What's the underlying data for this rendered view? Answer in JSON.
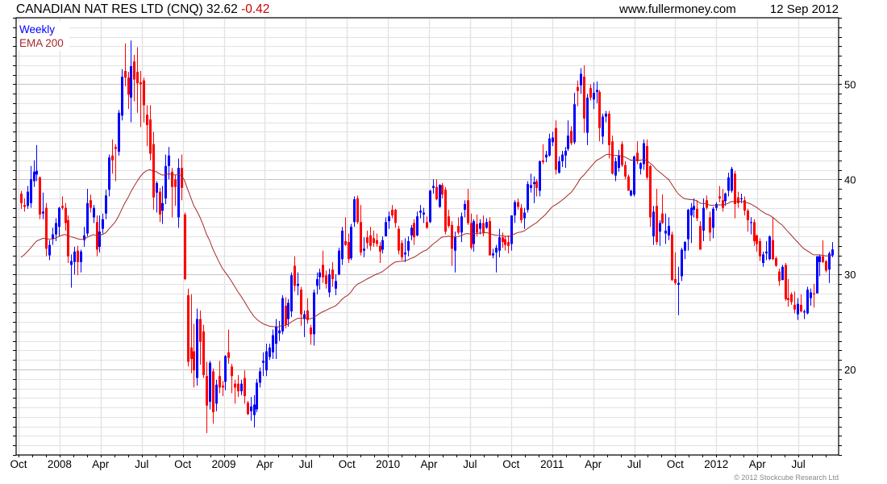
{
  "header": {
    "title": "CANADIAN NAT RES LTD (CNQ) 32.62",
    "change": "-0.42",
    "site": "www.fullermoney.com",
    "date": "12 Sep 2012"
  },
  "legend": {
    "series": "Weekly",
    "ema": "EMA 200"
  },
  "footer": {
    "copyright": "© 2012 Stockcube Research Ltd"
  },
  "colors": {
    "up": "#0000ff",
    "down": "#ff0000",
    "ema": "#a52a2a",
    "change": "#cc0000",
    "grid": "#e2e2e2",
    "grid_major": "#c4c4c4"
  },
  "chart_data": {
    "type": "candlestick",
    "title": "CANADIAN NAT RES LTD (CNQ)",
    "interval": "Weekly",
    "ylim": [
      11,
      57
    ],
    "yticks": [
      20,
      30,
      40,
      50
    ],
    "xticks": [
      "Oct",
      "2008",
      "Apr",
      "Jul",
      "Oct",
      "2009",
      "Apr",
      "Jul",
      "Oct",
      "2010",
      "Apr",
      "Jul",
      "Oct",
      "2011",
      "Apr",
      "Jul",
      "Oct",
      "2012",
      "Apr",
      "Jul"
    ],
    "grid": true,
    "ema": {
      "label": "EMA 200",
      "period_weeks": 40,
      "seed": 31.5
    },
    "candles_format": [
      "open",
      "high",
      "low",
      "close"
    ],
    "candles": [
      [
        38.5,
        38.8,
        36.9,
        37.5
      ],
      [
        37.3,
        38.0,
        36.6,
        37.1
      ],
      [
        37.2,
        39.3,
        36.9,
        38.7
      ],
      [
        37.5,
        41.4,
        37.0,
        40.0
      ],
      [
        39.8,
        42.0,
        39.2,
        40.8
      ],
      [
        40.5,
        43.6,
        39.8,
        40.9
      ],
      [
        40.2,
        40.3,
        35.8,
        36.3
      ],
      [
        36.4,
        38.6,
        35.8,
        36.6
      ],
      [
        37.0,
        37.5,
        31.9,
        32.7
      ],
      [
        32.0,
        33.6,
        31.5,
        33.1
      ],
      [
        33.7,
        34.9,
        33.1,
        34.2
      ],
      [
        34.2,
        35.9,
        33.5,
        35.4
      ],
      [
        35.0,
        37.1,
        34.0,
        37.0
      ],
      [
        37.2,
        38.2,
        36.8,
        37.0
      ],
      [
        37.0,
        37.5,
        34.6,
        35.4
      ],
      [
        35.7,
        36.2,
        31.2,
        31.9
      ],
      [
        31.0,
        32.1,
        28.6,
        31.4
      ],
      [
        31.3,
        32.9,
        30.0,
        32.4
      ],
      [
        32.5,
        33.0,
        29.9,
        31.3
      ],
      [
        31.3,
        32.6,
        30.2,
        32.4
      ],
      [
        33.6,
        35.0,
        32.9,
        34.1
      ],
      [
        34.3,
        39.0,
        34.0,
        37.5
      ],
      [
        37.8,
        38.4,
        36.5,
        37.0
      ],
      [
        36.0,
        37.3,
        35.4,
        37.0
      ],
      [
        35.5,
        36.2,
        31.9,
        32.6
      ],
      [
        32.9,
        36.2,
        32.3,
        34.5
      ],
      [
        34.8,
        36.4,
        34.3,
        35.8
      ],
      [
        36.4,
        38.9,
        35.8,
        38.3
      ],
      [
        38.9,
        42.6,
        38.2,
        42.3
      ],
      [
        42.5,
        44.2,
        40.6,
        42.0
      ],
      [
        43.4,
        43.7,
        39.8,
        43.2
      ],
      [
        42.9,
        47.3,
        42.5,
        47.0
      ],
      [
        46.7,
        51.6,
        46.2,
        50.8
      ],
      [
        51.4,
        54.3,
        49.8,
        50.7
      ],
      [
        50.7,
        51.3,
        47.4,
        48.9
      ],
      [
        48.6,
        54.6,
        46.0,
        51.9
      ],
      [
        52.4,
        53.1,
        48.2,
        50.5
      ],
      [
        51.3,
        53.9,
        47.0,
        50.1
      ],
      [
        50.2,
        51.4,
        45.5,
        50.0
      ],
      [
        50.4,
        50.7,
        46.0,
        47.8
      ],
      [
        46.8,
        47.8,
        43.5,
        45.7
      ],
      [
        46.3,
        47.8,
        42.0,
        42.7
      ],
      [
        43.7,
        45.0,
        36.8,
        38.1
      ],
      [
        38.6,
        39.8,
        36.5,
        39.6
      ],
      [
        38.7,
        39.1,
        35.5,
        36.3
      ],
      [
        36.7,
        39.3,
        35.3,
        37.5
      ],
      [
        38.0,
        42.6,
        37.4,
        41.4
      ],
      [
        41.4,
        43.4,
        40.0,
        42.5
      ],
      [
        40.8,
        41.2,
        36.0,
        39.2
      ],
      [
        40.0,
        40.5,
        37.2,
        39.2
      ],
      [
        36.0,
        42.2,
        34.9,
        41.2
      ],
      [
        41.2,
        42.6,
        37.8,
        39.1
      ],
      [
        36.3,
        36.5,
        29.4,
        29.5
      ],
      [
        27.8,
        28.5,
        20.3,
        20.8
      ],
      [
        22.3,
        27.9,
        19.6,
        21.1
      ],
      [
        21.9,
        24.8,
        18.1,
        19.9
      ],
      [
        19.1,
        26.4,
        18.3,
        25.3
      ],
      [
        25.3,
        26.2,
        20.5,
        22.9
      ],
      [
        24.0,
        24.7,
        19.1,
        19.4
      ],
      [
        19.3,
        20.8,
        13.3,
        16.2
      ],
      [
        16.6,
        20.9,
        15.8,
        20.7
      ],
      [
        19.8,
        20.1,
        14.3,
        15.5
      ],
      [
        16.4,
        18.9,
        15.6,
        18.4
      ],
      [
        19.3,
        20.9,
        17.5,
        18.1
      ],
      [
        18.3,
        18.8,
        17.2,
        18.1
      ],
      [
        18.7,
        21.5,
        17.8,
        21.4
      ],
      [
        21.8,
        24.2,
        20.6,
        21.2
      ],
      [
        20.3,
        20.6,
        17.5,
        19.3
      ],
      [
        18.5,
        18.9,
        16.4,
        18.1
      ],
      [
        18.5,
        19.4,
        17.1,
        17.7
      ],
      [
        17.7,
        18.9,
        17.3,
        18.5
      ],
      [
        19.1,
        19.9,
        16.4,
        17.2
      ],
      [
        16.5,
        16.7,
        15.2,
        15.3
      ],
      [
        15.6,
        17.1,
        14.6,
        16.1
      ],
      [
        15.2,
        17.3,
        13.9,
        16.3
      ],
      [
        15.8,
        19.0,
        15.5,
        18.6
      ],
      [
        18.6,
        20.2,
        18.1,
        19.8
      ],
      [
        20.7,
        21.8,
        19.3,
        20.9
      ],
      [
        19.9,
        22.7,
        19.3,
        21.9
      ],
      [
        21.3,
        22.7,
        21.0,
        22.3
      ],
      [
        21.8,
        24.2,
        21.1,
        23.6
      ],
      [
        22.7,
        25.3,
        21.1,
        24.5
      ],
      [
        23.8,
        25.1,
        23.0,
        24.1
      ],
      [
        24.0,
        27.8,
        23.7,
        27.5
      ],
      [
        26.7,
        27.6,
        24.3,
        24.7
      ],
      [
        25.3,
        27.4,
        24.5,
        27.0
      ],
      [
        26.1,
        30.2,
        25.5,
        29.9
      ],
      [
        30.9,
        31.9,
        28.2,
        28.8
      ],
      [
        28.8,
        30.2,
        27.8,
        29.0
      ],
      [
        28.4,
        28.7,
        24.6,
        25.8
      ],
      [
        25.3,
        26.2,
        23.4,
        25.8
      ],
      [
        26.2,
        27.5,
        24.8,
        25.2
      ],
      [
        24.4,
        24.7,
        22.6,
        23.7
      ],
      [
        23.7,
        28.4,
        22.5,
        28.1
      ],
      [
        28.8,
        30.2,
        27.9,
        29.5
      ],
      [
        29.7,
        30.6,
        28.4,
        30.2
      ],
      [
        31.0,
        32.5,
        29.1,
        29.7
      ],
      [
        29.9,
        30.4,
        28.5,
        29.0
      ],
      [
        28.1,
        30.6,
        27.6,
        30.0
      ],
      [
        30.5,
        31.3,
        28.7,
        29.5
      ],
      [
        28.5,
        30.0,
        27.8,
        29.3
      ],
      [
        30.0,
        32.8,
        29.9,
        32.5
      ],
      [
        31.6,
        35.0,
        31.0,
        34.6
      ],
      [
        33.5,
        36.0,
        33.0,
        33.1
      ],
      [
        33.4,
        34.3,
        31.2,
        31.6
      ],
      [
        31.7,
        35.3,
        31.5,
        35.0
      ],
      [
        35.5,
        38.2,
        35.0,
        37.9
      ],
      [
        38.0,
        38.3,
        35.3,
        35.5
      ],
      [
        35.5,
        37.3,
        32.0,
        32.3
      ],
      [
        32.5,
        33.9,
        31.8,
        32.7
      ],
      [
        33.9,
        34.6,
        32.7,
        33.3
      ],
      [
        34.1,
        35.0,
        32.5,
        33.0
      ],
      [
        33.8,
        34.6,
        32.9,
        33.3
      ],
      [
        33.6,
        34.3,
        32.9,
        33.2
      ],
      [
        33.0,
        33.4,
        31.2,
        32.4
      ],
      [
        32.6,
        34.0,
        32.2,
        33.6
      ],
      [
        34.0,
        36.0,
        34.0,
        35.5
      ],
      [
        35.6,
        36.6,
        34.8,
        36.1
      ],
      [
        36.8,
        37.3,
        35.9,
        36.2
      ],
      [
        36.8,
        36.9,
        34.9,
        35.4
      ],
      [
        34.8,
        35.1,
        32.1,
        32.5
      ],
      [
        33.3,
        33.6,
        31.5,
        31.8
      ],
      [
        32.1,
        33.8,
        31.3,
        32.3
      ],
      [
        32.5,
        34.0,
        31.9,
        33.5
      ],
      [
        34.1,
        35.2,
        33.6,
        34.9
      ],
      [
        35.4,
        35.8,
        33.1,
        33.9
      ],
      [
        34.1,
        36.6,
        34.0,
        36.1
      ],
      [
        36.5,
        37.3,
        35.9,
        36.7
      ],
      [
        36.3,
        37.0,
        35.4,
        36.5
      ],
      [
        35.5,
        36.1,
        34.8,
        34.9
      ],
      [
        35.5,
        38.9,
        35.4,
        38.8
      ],
      [
        39.1,
        40.0,
        38.5,
        39.3
      ],
      [
        39.2,
        40.0,
        37.8,
        37.9
      ],
      [
        37.1,
        39.5,
        37.0,
        39.4
      ],
      [
        39.4,
        39.6,
        38.0,
        38.4
      ],
      [
        38.9,
        39.2,
        34.2,
        34.5
      ],
      [
        36.1,
        36.8,
        34.9,
        35.1
      ],
      [
        35.2,
        35.6,
        30.9,
        32.7
      ],
      [
        32.5,
        34.5,
        30.2,
        33.9
      ],
      [
        35.1,
        36.0,
        34.2,
        34.4
      ],
      [
        34.4,
        36.5,
        33.4,
        36.1
      ],
      [
        36.8,
        37.8,
        36.0,
        37.4
      ],
      [
        37.8,
        39.0,
        35.2,
        35.4
      ],
      [
        35.4,
        36.4,
        32.6,
        32.8
      ],
      [
        33.2,
        35.8,
        32.4,
        35.6
      ],
      [
        35.3,
        36.3,
        34.0,
        34.4
      ],
      [
        34.8,
        35.8,
        34.2,
        35.4
      ],
      [
        35.4,
        36.2,
        34.0,
        34.4
      ],
      [
        34.9,
        35.9,
        34.8,
        35.5
      ],
      [
        35.6,
        36.0,
        32.0,
        32.0
      ],
      [
        32.0,
        32.7,
        31.7,
        32.2
      ],
      [
        32.3,
        33.1,
        30.2,
        32.8
      ],
      [
        32.5,
        34.8,
        31.8,
        33.9
      ],
      [
        33.9,
        34.4,
        32.8,
        33.4
      ],
      [
        33.7,
        34.0,
        32.5,
        33.1
      ],
      [
        33.4,
        34.1,
        32.2,
        33.0
      ],
      [
        33.2,
        36.2,
        32.5,
        36.2
      ],
      [
        36.2,
        37.8,
        35.4,
        37.6
      ],
      [
        37.6,
        38.0,
        36.8,
        37.1
      ],
      [
        37.0,
        37.4,
        35.4,
        35.7
      ],
      [
        35.9,
        37.0,
        34.8,
        36.5
      ],
      [
        36.8,
        39.8,
        36.5,
        39.5
      ],
      [
        39.1,
        40.6,
        38.6,
        39.4
      ],
      [
        39.5,
        40.3,
        37.5,
        39.7
      ],
      [
        39.8,
        40.0,
        38.2,
        39.1
      ],
      [
        38.8,
        42.0,
        38.2,
        41.9
      ],
      [
        42.0,
        43.7,
        41.6,
        41.8
      ],
      [
        42.3,
        43.0,
        41.8,
        42.6
      ],
      [
        42.5,
        44.8,
        42.4,
        44.3
      ],
      [
        43.9,
        45.0,
        43.5,
        44.4
      ],
      [
        45.4,
        46.2,
        40.5,
        41.0
      ],
      [
        40.7,
        42.4,
        40.6,
        41.9
      ],
      [
        41.9,
        43.0,
        41.3,
        42.6
      ],
      [
        42.5,
        43.4,
        41.2,
        43.0
      ],
      [
        43.2,
        46.2,
        43.0,
        44.6
      ],
      [
        45.1,
        45.6,
        43.6,
        43.8
      ],
      [
        43.9,
        49.1,
        43.7,
        47.9
      ],
      [
        49.7,
        50.4,
        47.7,
        49.3
      ],
      [
        49.9,
        51.7,
        49.0,
        51.1
      ],
      [
        50.8,
        52.0,
        44.9,
        46.4
      ],
      [
        44.9,
        49.0,
        43.6,
        48.6
      ],
      [
        49.6,
        50.0,
        48.3,
        48.6
      ],
      [
        48.4,
        50.2,
        47.4,
        49.1
      ],
      [
        49.2,
        50.3,
        48.0,
        49.4
      ],
      [
        49.2,
        49.4,
        44.0,
        45.4
      ],
      [
        44.5,
        46.9,
        43.7,
        46.6
      ],
      [
        46.6,
        47.2,
        46.0,
        46.9
      ],
      [
        46.9,
        47.2,
        42.2,
        43.6
      ],
      [
        44.0,
        44.6,
        40.5,
        40.6
      ],
      [
        40.4,
        42.3,
        39.8,
        41.9
      ],
      [
        41.2,
        43.1,
        40.8,
        42.5
      ],
      [
        43.7,
        44.0,
        41.3,
        41.5
      ],
      [
        41.5,
        41.9,
        40.0,
        40.3
      ],
      [
        40.3,
        40.5,
        38.8,
        38.8
      ],
      [
        38.3,
        38.9,
        38.2,
        38.8
      ],
      [
        38.4,
        42.5,
        38.2,
        42.4
      ],
      [
        42.8,
        44.0,
        41.6,
        41.9
      ],
      [
        41.1,
        41.8,
        40.5,
        41.7
      ],
      [
        41.6,
        44.2,
        41.0,
        43.8
      ],
      [
        43.5,
        44.2,
        40.0,
        40.2
      ],
      [
        41.4,
        41.5,
        35.0,
        36.0
      ],
      [
        34.0,
        37.2,
        33.1,
        36.6
      ],
      [
        37.2,
        39.0,
        33.1,
        33.4
      ],
      [
        34.5,
        35.7,
        33.0,
        35.4
      ],
      [
        36.4,
        38.4,
        35.3,
        35.4
      ],
      [
        34.3,
        36.4,
        33.2,
        34.6
      ],
      [
        34.1,
        36.0,
        33.6,
        35.1
      ],
      [
        34.2,
        34.5,
        29.3,
        29.4
      ],
      [
        29.5,
        32.3,
        28.9,
        29.1
      ],
      [
        28.9,
        30.8,
        25.7,
        29.1
      ],
      [
        29.8,
        32.8,
        29.3,
        32.6
      ],
      [
        32.5,
        33.5,
        31.6,
        33.4
      ],
      [
        33.7,
        36.9,
        32.5,
        36.8
      ],
      [
        36.2,
        37.5,
        33.3,
        37.0
      ],
      [
        36.8,
        38.0,
        36.0,
        37.2
      ],
      [
        36.9,
        37.8,
        35.6,
        35.9
      ],
      [
        35.1,
        35.6,
        32.6,
        32.6
      ],
      [
        34.6,
        38.0,
        33.5,
        37.0
      ],
      [
        37.8,
        38.3,
        36.8,
        37.0
      ],
      [
        36.0,
        36.6,
        33.5,
        34.4
      ],
      [
        34.9,
        37.1,
        33.8,
        36.9
      ],
      [
        37.0,
        37.6,
        36.7,
        37.4
      ],
      [
        38.2,
        39.3,
        37.6,
        38.0
      ],
      [
        37.8,
        39.0,
        36.6,
        37.0
      ],
      [
        37.7,
        38.6,
        37.2,
        38.5
      ],
      [
        38.8,
        40.7,
        38.2,
        40.2
      ],
      [
        38.8,
        41.3,
        38.6,
        41.1
      ],
      [
        40.6,
        40.9,
        35.9,
        37.4
      ],
      [
        38.1,
        38.7,
        37.0,
        37.5
      ],
      [
        37.9,
        38.5,
        37.5,
        38.0
      ],
      [
        37.8,
        38.2,
        36.2,
        36.7
      ],
      [
        36.7,
        36.9,
        34.5,
        35.7
      ],
      [
        35.4,
        36.0,
        34.2,
        35.5
      ],
      [
        35.5,
        35.8,
        33.0,
        33.5
      ],
      [
        34.1,
        34.2,
        32.4,
        33.2
      ],
      [
        33.5,
        33.8,
        31.4,
        31.9
      ],
      [
        31.2,
        32.4,
        30.8,
        32.1
      ],
      [
        32.2,
        33.5,
        31.5,
        32.4
      ],
      [
        31.6,
        34.1,
        31.5,
        34.0
      ],
      [
        33.6,
        36.0,
        31.5,
        31.6
      ],
      [
        31.7,
        31.9,
        30.8,
        30.9
      ],
      [
        30.3,
        30.6,
        28.8,
        29.3
      ],
      [
        29.4,
        31.0,
        29.4,
        30.8
      ],
      [
        31.0,
        31.2,
        27.2,
        27.4
      ],
      [
        27.5,
        29.5,
        26.6,
        27.3
      ],
      [
        27.9,
        28.1,
        26.8,
        27.1
      ],
      [
        26.8,
        28.2,
        25.9,
        26.3
      ],
      [
        25.8,
        27.5,
        25.2,
        26.9
      ],
      [
        26.8,
        27.9,
        26.0,
        26.1
      ],
      [
        26.0,
        26.3,
        25.3,
        26.1
      ],
      [
        25.9,
        28.7,
        25.8,
        28.4
      ],
      [
        27.5,
        28.5,
        26.7,
        28.1
      ],
      [
        28.0,
        29.0,
        26.5,
        27.9
      ],
      [
        28.0,
        31.9,
        28.0,
        31.9
      ],
      [
        31.3,
        32.1,
        29.8,
        31.9
      ],
      [
        31.9,
        33.6,
        31.2,
        31.3
      ],
      [
        31.4,
        31.5,
        30.2,
        30.4
      ],
      [
        30.5,
        32.4,
        29.1,
        32.2
      ],
      [
        32.0,
        33.4,
        31.8,
        32.62
      ]
    ]
  }
}
